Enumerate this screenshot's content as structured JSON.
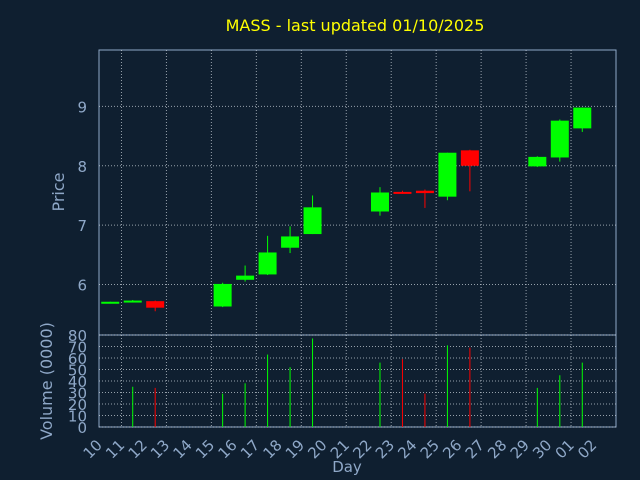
{
  "chart_data": {
    "type": "candlestick",
    "title": "MASS - last updated 01/10/2025",
    "xlabel": "Day",
    "price_panel": {
      "ylabel": "Price",
      "ylim": [
        5.15,
        9.95
      ],
      "yticks": [
        "6",
        "7",
        "8",
        "9"
      ],
      "grid": true
    },
    "volume_panel": {
      "ylabel": "Volume (0000)",
      "ylim": [
        0,
        80
      ],
      "yticks": [
        "0",
        "10",
        "20",
        "30",
        "40",
        "50",
        "60",
        "70",
        "80"
      ],
      "grid": true
    },
    "x_ticks": [
      "10",
      "11",
      "12",
      "13",
      "14",
      "15",
      "16",
      "17",
      "18",
      "19",
      "20",
      "21",
      "22",
      "23",
      "24",
      "25",
      "26",
      "27",
      "28",
      "29",
      "30",
      "01",
      "02"
    ],
    "candles": [
      {
        "day": "10",
        "open": 5.7,
        "high": 5.71,
        "low": 5.69,
        "close": 5.71,
        "volume": 0
      },
      {
        "day": "11",
        "open": 5.71,
        "high": 5.74,
        "low": 5.7,
        "close": 5.73,
        "volume": 35
      },
      {
        "day": "12",
        "open": 5.72,
        "high": 5.73,
        "low": 5.55,
        "close": 5.61,
        "volume": 34
      },
      {
        "day": "15",
        "open": 5.63,
        "high": 6.03,
        "low": 5.62,
        "close": 6.01,
        "volume": 29
      },
      {
        "day": "16",
        "open": 6.08,
        "high": 6.32,
        "low": 6.05,
        "close": 6.15,
        "volume": 38
      },
      {
        "day": "17",
        "open": 6.17,
        "high": 6.82,
        "low": 6.16,
        "close": 6.54,
        "volume": 63
      },
      {
        "day": "18",
        "open": 6.62,
        "high": 6.98,
        "low": 6.53,
        "close": 6.81,
        "volume": 52
      },
      {
        "day": "19",
        "open": 6.85,
        "high": 7.5,
        "low": 6.85,
        "close": 7.3,
        "volume": 77
      },
      {
        "day": "22",
        "open": 7.23,
        "high": 7.64,
        "low": 7.16,
        "close": 7.55,
        "volume": 56
      },
      {
        "day": "23",
        "open": 7.56,
        "high": 7.58,
        "low": 7.53,
        "close": 7.55,
        "volume": 59
      },
      {
        "day": "24",
        "open": 7.58,
        "high": 7.6,
        "low": 7.29,
        "close": 7.54,
        "volume": 29
      },
      {
        "day": "25",
        "open": 7.48,
        "high": 8.22,
        "low": 7.42,
        "close": 8.22,
        "volume": 71
      },
      {
        "day": "26",
        "open": 8.26,
        "high": 8.27,
        "low": 7.57,
        "close": 8.0,
        "volume": 69
      },
      {
        "day": "29",
        "open": 7.99,
        "high": 8.16,
        "low": 7.98,
        "close": 8.15,
        "volume": 34
      },
      {
        "day": "30",
        "open": 8.14,
        "high": 8.78,
        "low": 8.07,
        "close": 8.76,
        "volume": 45
      },
      {
        "day": "01",
        "open": 8.63,
        "high": 8.98,
        "low": 8.57,
        "close": 8.98,
        "volume": 56
      }
    ],
    "colors": {
      "background": "#0f1f30",
      "axis": "#8fa8c8",
      "grid": "#d0d8e0",
      "title": "#ffff00",
      "up": "#00ff00",
      "down": "#ff0000"
    }
  }
}
